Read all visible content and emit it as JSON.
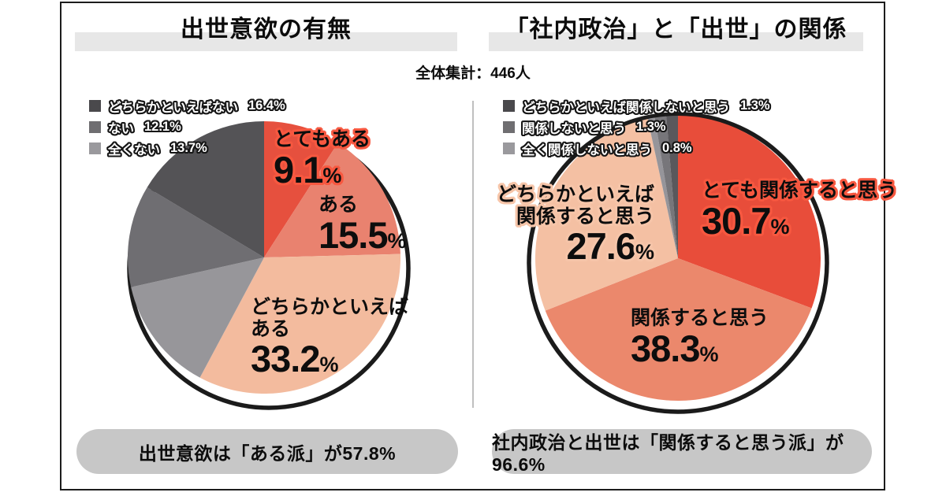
{
  "header": {
    "left_title": "出世意欲の有無",
    "right_title": "「社内政治」と「出世」の関係",
    "total": "全体集計：446人"
  },
  "units": {
    "percent": "%"
  },
  "chart_data": [
    {
      "type": "pie",
      "title": "出世意欲の有無",
      "start_angle_deg": 0,
      "direction": "clockwise",
      "slices": [
        {
          "label": "とてもある",
          "value": 9.1,
          "display": "9.1",
          "color": "#e6503e",
          "highlighted": true
        },
        {
          "label": "ある",
          "value": 15.5,
          "display": "15.5",
          "color": "#e9826f",
          "highlighted": false
        },
        {
          "label": "どちらかといえばある",
          "label_lines": [
            "どちらかといえば",
            "ある"
          ],
          "value": 33.2,
          "display": "33.2",
          "color": "#f3bb9e",
          "highlighted": false
        },
        {
          "label": "全くない",
          "value": 13.7,
          "display": "13.7",
          "color": "#97969a",
          "highlighted": false
        },
        {
          "label": "ない",
          "value": 12.1,
          "display": "12.1",
          "color": "#6f6e72",
          "highlighted": false
        },
        {
          "label": "どちらかといえばない",
          "value": 16.4,
          "display": "16.4",
          "color": "#545356",
          "highlighted": false
        }
      ],
      "legend": [
        {
          "label": "どちらかといえばない",
          "pct": "16.4%",
          "color": "#4a494c"
        },
        {
          "label": "ない",
          "pct": "12.1%",
          "color": "#6f6e71"
        },
        {
          "label": "全くない",
          "pct": "13.7%",
          "color": "#9a999d"
        }
      ],
      "summary": "出世意欲は「ある派」が57.8%"
    },
    {
      "type": "pie",
      "title": "「社内政治」と「出世」の関係",
      "start_angle_deg": 0,
      "direction": "clockwise",
      "slices": [
        {
          "label": "とても関係すると思う",
          "value": 30.7,
          "display": "30.7",
          "color": "#e84d3a",
          "highlighted": true
        },
        {
          "label": "関係すると思う",
          "value": 38.3,
          "display": "38.3",
          "color": "#eb886c",
          "highlighted": false
        },
        {
          "label": "どちらかといえば関係すると思う",
          "label_lines": [
            "どちらかといえば",
            "関係すると思う"
          ],
          "value": 27.6,
          "display": "27.6",
          "color": "#f4c0a3",
          "highlighted": false
        },
        {
          "label": "全く関係しないと思う",
          "value": 0.8,
          "display": "0.8",
          "color": "#96959a",
          "highlighted": false
        },
        {
          "label": "関係しないと思う",
          "value": 1.3,
          "display": "1.3",
          "color": "#77767a",
          "highlighted": false
        },
        {
          "label": "どちらかといえば関係しないと思う",
          "value": 1.3,
          "display": "1.3",
          "color": "#59585c",
          "highlighted": false
        }
      ],
      "legend": [
        {
          "label": "どちらかといえば関係しないと思う",
          "pct": "1.3%",
          "color": "#4a494c"
        },
        {
          "label": "関係しないと思う",
          "pct": "1.3%",
          "color": "#6f6e71"
        },
        {
          "label": "全く関係しないと思う",
          "pct": "0.8%",
          "color": "#9a999d"
        }
      ],
      "summary": "社内政治と出世は「関係すると思う派」が96.6%"
    }
  ]
}
